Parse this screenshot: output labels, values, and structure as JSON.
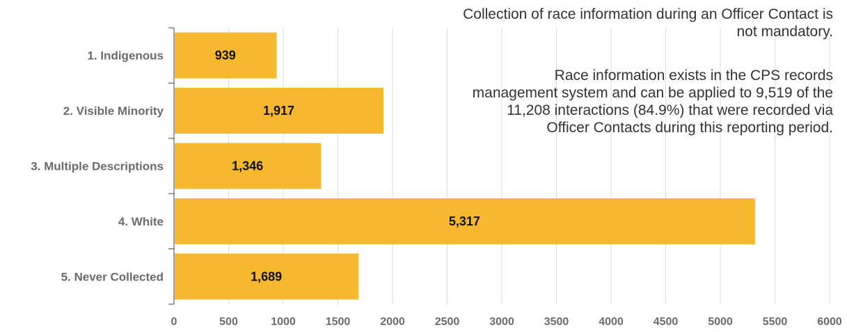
{
  "chart_data": {
    "type": "bar",
    "orientation": "horizontal",
    "categories": [
      "1. Indigenous",
      "2. Visible Minority",
      "3. Multiple Descriptions",
      "4. White",
      "5. Never Collected"
    ],
    "values": [
      939,
      1917,
      1346,
      5317,
      1689
    ],
    "value_labels": [
      "939",
      "1,917",
      "1,346",
      "5,317",
      "1,689"
    ],
    "xlim": [
      0,
      6000
    ],
    "x_ticks": [
      0,
      500,
      1000,
      1500,
      2000,
      2500,
      3000,
      3500,
      4000,
      4500,
      5000,
      5500,
      6000
    ],
    "grid": "vertical",
    "bar_color": "#F5B82E",
    "annotations": [
      "Collection of race information during an Officer Contact is not mandatory.",
      "Race information exists in the CPS records management system and can be applied to 9,519 of the 11,208 interactions  (84.9%) that were recorded via Officer Contacts during this reporting period."
    ]
  }
}
